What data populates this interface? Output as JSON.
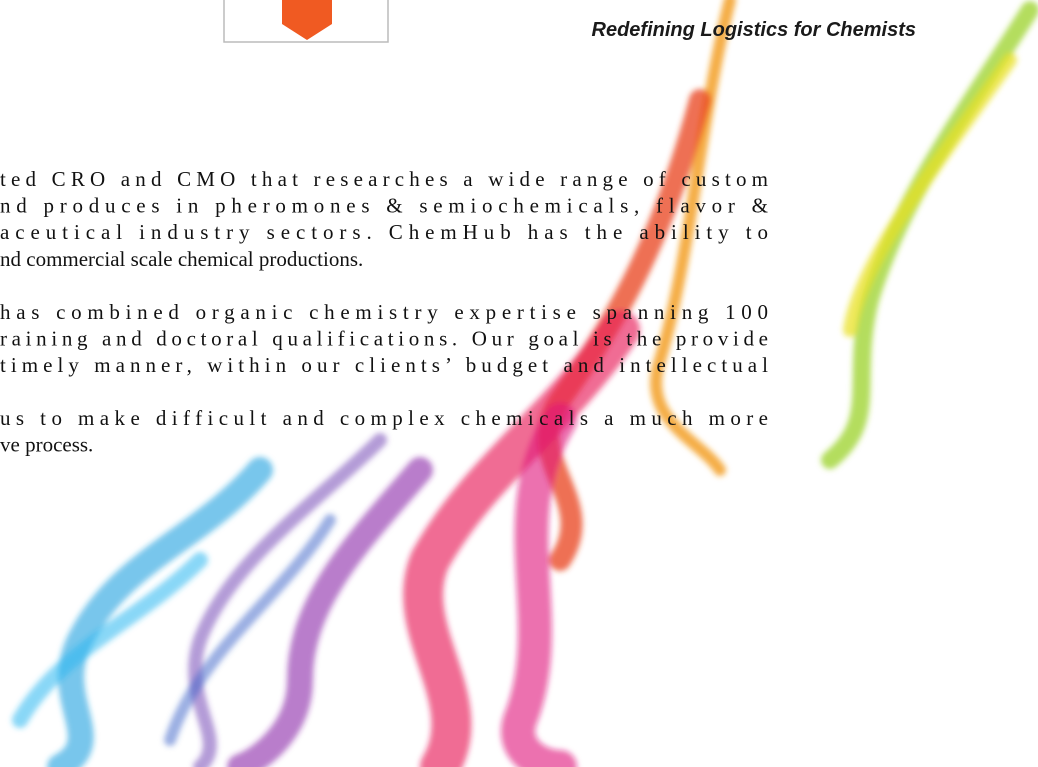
{
  "header": {
    "tagline": "Redefining Logistics for Chemists"
  },
  "body": {
    "paragraphs": [
      {
        "lines": [
          "ted CRO and CMO that researches a wide range of custom",
          "nd produces in pheromones & semiochemicals, flavor &",
          "aceutical industry sectors. ChemHub has the ability to",
          "nd commercial scale chemical productions."
        ]
      },
      {
        "lines": [
          "has combined organic chemistry expertise spanning 100",
          "raining and doctoral qualifications. Our goal is the provide",
          "timely manner, within our clients’ budget and intellectual"
        ]
      },
      {
        "lines": [
          "us to make difficult and complex chemicals a much more",
          "ve process."
        ]
      }
    ]
  }
}
